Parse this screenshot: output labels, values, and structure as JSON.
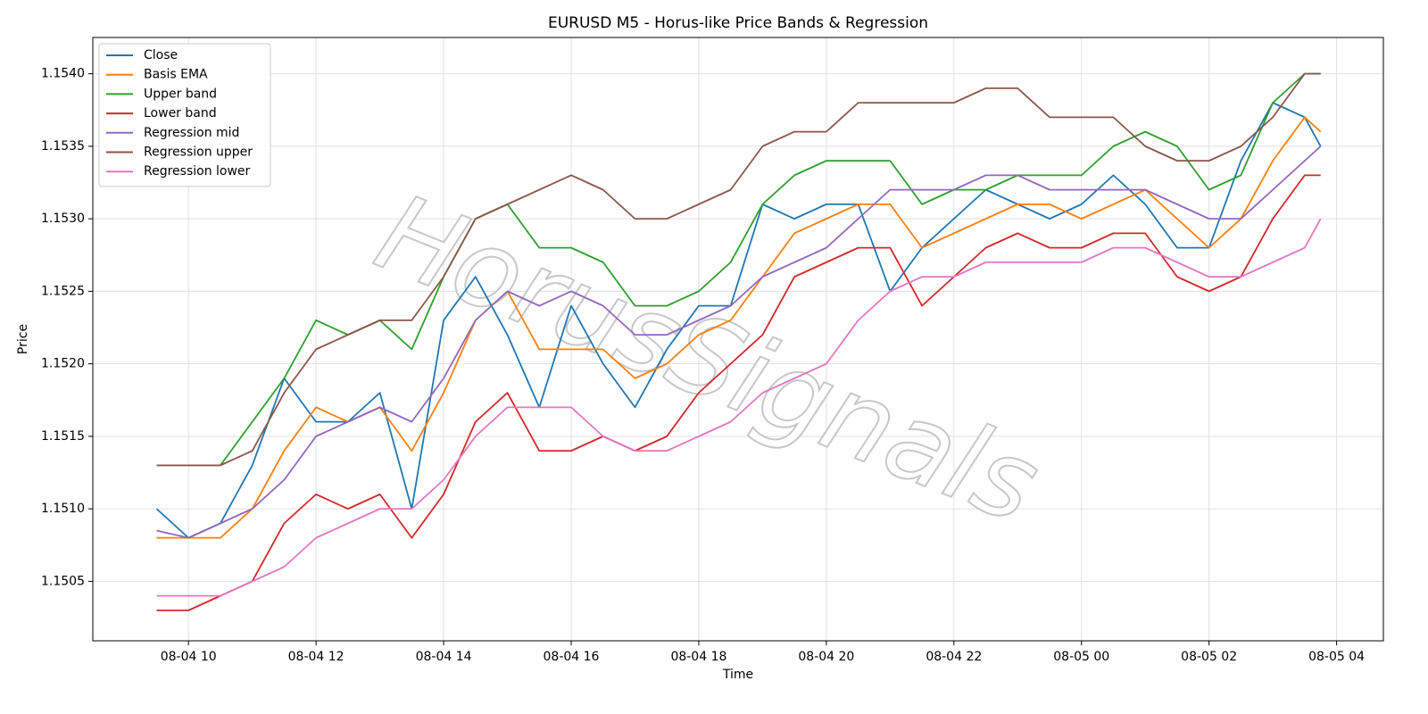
{
  "chart_data": {
    "type": "line",
    "title": "EURUSD M5 - Horus-like Price Bands & Regression",
    "x_label": "Time",
    "y_label": "Price",
    "watermark": "HorusSignals",
    "grid": true,
    "legend": "upper left",
    "xlim": [
      "08-04 08:30",
      "08-05 04:44"
    ],
    "xticks": [
      "08-04 10",
      "08-04 12",
      "08-04 14",
      "08-04 16",
      "08-04 18",
      "08-04 20",
      "08-04 22",
      "08-05 00",
      "08-05 02",
      "08-05 04"
    ],
    "ylim": [
      1.15009,
      1.15425
    ],
    "yticks": [
      1.1505,
      {
        "value": 1.151,
        "label": "1.1510"
      },
      1.1515,
      {
        "value": 1.152,
        "label": "1.1520"
      },
      1.1525,
      {
        "value": 1.153,
        "label": "1.1530"
      },
      1.1535,
      {
        "value": 1.154,
        "label": "1.1540"
      }
    ],
    "x": [
      "08-04 09:30",
      "08-04 10:00",
      "08-04 10:30",
      "08-04 11:00",
      "08-04 11:30",
      "08-04 12:00",
      "08-04 12:30",
      "08-04 13:00",
      "08-04 13:30",
      "08-04 14:00",
      "08-04 14:30",
      "08-04 15:00",
      "08-04 15:30",
      "08-04 16:00",
      "08-04 16:30",
      "08-04 17:00",
      "08-04 17:30",
      "08-04 18:00",
      "08-04 18:30",
      "08-04 19:00",
      "08-04 19:30",
      "08-04 20:00",
      "08-04 20:30",
      "08-04 21:00",
      "08-04 21:30",
      "08-04 22:00",
      "08-04 22:30",
      "08-04 23:00",
      "08-04 23:30",
      "08-05 00:00",
      "08-05 00:30",
      "08-05 01:00",
      "08-05 01:30",
      "08-05 02:00",
      "08-05 02:30",
      "08-05 03:00",
      "08-05 03:30",
      "08-05 03:45"
    ],
    "series": [
      {
        "name": "Close",
        "color": "#1f77b4",
        "values": [
          1.151,
          1.1508,
          1.1509,
          1.1513,
          1.1519,
          1.1516,
          1.1516,
          1.1518,
          1.151,
          1.1523,
          1.1526,
          1.1522,
          1.1517,
          1.1524,
          1.152,
          1.1517,
          1.1521,
          1.1524,
          1.1524,
          1.1531,
          1.153,
          1.1531,
          1.1531,
          1.1525,
          1.1528,
          1.153,
          1.1532,
          1.1531,
          1.153,
          1.1531,
          1.1533,
          1.1531,
          1.1528,
          1.1528,
          1.1534,
          1.1538,
          1.1537,
          1.1535
        ]
      },
      {
        "name": "Basis EMA",
        "color": "#ff7f0e",
        "values": [
          1.1508,
          1.1508,
          1.1508,
          1.151,
          1.1514,
          1.1517,
          1.1516,
          1.1517,
          1.1514,
          1.1518,
          1.1523,
          1.1525,
          1.1521,
          1.1521,
          1.1521,
          1.1519,
          1.152,
          1.1522,
          1.1523,
          1.1526,
          1.1529,
          1.153,
          1.1531,
          1.1531,
          1.1528,
          1.1529,
          1.153,
          1.1531,
          1.1531,
          1.153,
          1.1531,
          1.1532,
          1.153,
          1.1528,
          1.153,
          1.1534,
          1.1537,
          1.1536
        ]
      },
      {
        "name": "Upper band",
        "color": "#2ca02c",
        "values": [
          1.1513,
          1.1513,
          1.1513,
          1.1516,
          1.1519,
          1.1523,
          1.1522,
          1.1523,
          1.1521,
          1.1526,
          1.153,
          1.1531,
          1.1528,
          1.1528,
          1.1527,
          1.1524,
          1.1524,
          1.1525,
          1.1527,
          1.1531,
          1.1533,
          1.1534,
          1.1534,
          1.1534,
          1.1531,
          1.1532,
          1.1532,
          1.1533,
          1.1533,
          1.1533,
          1.1535,
          1.1536,
          1.1535,
          1.1532,
          1.1533,
          1.1538,
          1.154,
          1.154
        ]
      },
      {
        "name": "Lower band",
        "color": "#d62728",
        "values": [
          1.1503,
          1.1503,
          1.1504,
          1.1505,
          1.1509,
          1.1511,
          1.151,
          1.1511,
          1.1508,
          1.1511,
          1.1516,
          1.1518,
          1.1514,
          1.1514,
          1.1515,
          1.1514,
          1.1515,
          1.1518,
          1.152,
          1.1522,
          1.1526,
          1.1527,
          1.1528,
          1.1528,
          1.1524,
          1.1526,
          1.1528,
          1.1529,
          1.1528,
          1.1528,
          1.1529,
          1.1529,
          1.1526,
          1.1525,
          1.1526,
          1.153,
          1.1533,
          1.1533
        ]
      },
      {
        "name": "Regression mid",
        "color": "#9467bd",
        "values": [
          1.15085,
          1.1508,
          1.1509,
          1.151,
          1.1512,
          1.1515,
          1.1516,
          1.1517,
          1.1516,
          1.1519,
          1.1523,
          1.1525,
          1.1524,
          1.1525,
          1.1524,
          1.1522,
          1.1522,
          1.1523,
          1.1524,
          1.1526,
          1.1527,
          1.1528,
          1.153,
          1.1532,
          1.1532,
          1.1532,
          1.1533,
          1.1533,
          1.1532,
          1.1532,
          1.1532,
          1.1532,
          1.1531,
          1.153,
          1.153,
          1.1532,
          1.1534,
          1.1535
        ]
      },
      {
        "name": "Regression upper",
        "color": "#8c564b",
        "values": [
          1.1513,
          1.1513,
          1.1513,
          1.1514,
          1.1518,
          1.1521,
          1.1522,
          1.1523,
          1.1523,
          1.1526,
          1.153,
          1.1531,
          1.1532,
          1.1533,
          1.1532,
          1.153,
          1.153,
          1.1531,
          1.1532,
          1.1535,
          1.1536,
          1.1536,
          1.1538,
          1.1538,
          1.1538,
          1.1538,
          1.1539,
          1.1539,
          1.1537,
          1.1537,
          1.1537,
          1.1535,
          1.1534,
          1.1534,
          1.1535,
          1.1537,
          1.154,
          1.154
        ]
      },
      {
        "name": "Regression lower",
        "color": "#e377c2",
        "values": [
          1.1504,
          1.1504,
          1.1504,
          1.1505,
          1.1506,
          1.1508,
          1.1509,
          1.151,
          1.151,
          1.1512,
          1.1515,
          1.1517,
          1.1517,
          1.1517,
          1.1515,
          1.1514,
          1.1514,
          1.1515,
          1.1516,
          1.1518,
          1.1519,
          1.152,
          1.1523,
          1.1525,
          1.1526,
          1.1526,
          1.1527,
          1.1527,
          1.1527,
          1.1527,
          1.1528,
          1.1528,
          1.1527,
          1.1526,
          1.1526,
          1.1527,
          1.1528,
          1.153
        ]
      }
    ]
  }
}
